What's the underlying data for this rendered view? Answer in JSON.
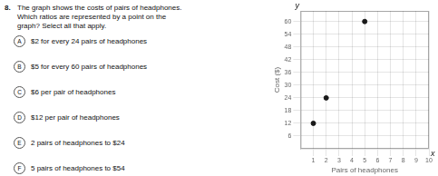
{
  "chart_data": {
    "type": "scatter",
    "x": [
      1,
      2,
      5
    ],
    "values": [
      12,
      24,
      60
    ],
    "color": "#1a1a1a",
    "marker": "circle",
    "xlim": [
      0,
      10
    ],
    "ylim": [
      0,
      65
    ],
    "xticks": [
      1,
      2,
      3,
      4,
      5,
      6,
      7,
      8,
      9,
      10
    ],
    "yticks": [
      6,
      12,
      18,
      24,
      30,
      36,
      42,
      48,
      54,
      60
    ],
    "xlabel": "Pairs of headphones",
    "ylabel": "Cost ($)",
    "grid": true,
    "annotations": {
      "question_number": "8.",
      "question": [
        "The graph shows the costs of pairs of headphones.",
        "Which ratios are represented by a point on the",
        "graph? Select all that apply."
      ],
      "options": [
        {
          "label": "A",
          "text": "$2 for every 24 pairs of headphones"
        },
        {
          "label": "B",
          "text": "$5 for every 60 pairs of headphones"
        },
        {
          "label": "C",
          "text": "$6 per pair of headphones"
        },
        {
          "label": "D",
          "text": "$12 per pair of headphones"
        },
        {
          "label": "E",
          "text": "2 pairs of headphones to $24"
        },
        {
          "label": "F",
          "text": "5 pairs of headphones to $54"
        }
      ],
      "axis_letters": {
        "x": "x",
        "y": "y"
      }
    }
  }
}
